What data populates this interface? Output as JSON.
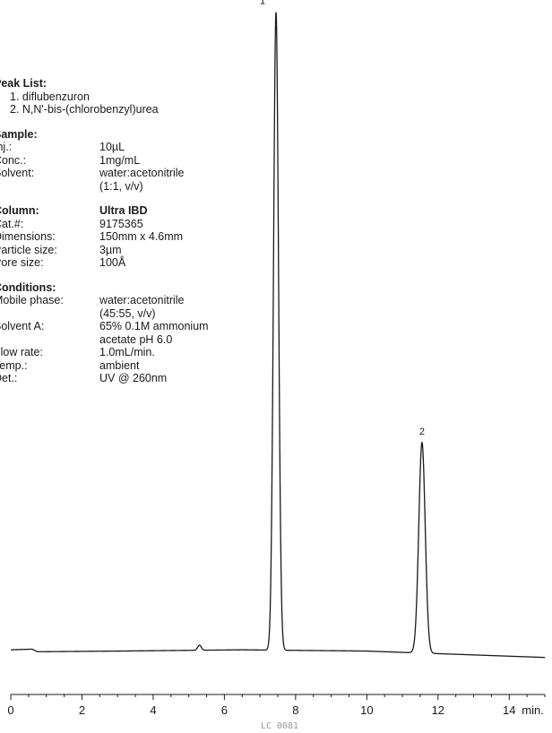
{
  "panel": {
    "peak_list": {
      "title": "Peak List:",
      "items": [
        "1. diflubenzuron",
        "2. N,N'-bis-(chlorobenzyl)urea"
      ]
    },
    "sample": {
      "title": "Sample:",
      "rows": [
        {
          "label": "Inj.:",
          "value": "10µL"
        },
        {
          "label": "Conc.:",
          "value": "1mg/mL"
        },
        {
          "label": "Solvent:",
          "value": "water:acetonitrile"
        },
        {
          "label": "",
          "value": "(1:1, v/v)"
        }
      ]
    },
    "column": {
      "title": "Column:",
      "title_value": "Ultra IBD",
      "rows": [
        {
          "label": "Cat.#:",
          "value": "9175365"
        },
        {
          "label": "Dimensions:",
          "value": "150mm x 4.6mm"
        },
        {
          "label": "Particle size:",
          "value": "3µm"
        },
        {
          "label": "Pore size:",
          "value": "100Å"
        }
      ]
    },
    "conditions": {
      "title": "Conditions:",
      "rows": [
        {
          "label": "Mobile phase:",
          "value": "water:acetonitrile"
        },
        {
          "label": "",
          "value": "(45:55, v/v)"
        },
        {
          "label": "Solvent A:",
          "value": "65% 0.1M ammonium"
        },
        {
          "label": "",
          "value": "acetate pH 6.0"
        },
        {
          "label": "Flow rate:",
          "value": "1.0mL/min."
        },
        {
          "label": "Temp.:",
          "value": "ambient"
        },
        {
          "label": "Det.:",
          "value": "UV @ 260nm"
        }
      ]
    }
  },
  "chart_data": {
    "type": "line",
    "title": "",
    "xlabel": "min.",
    "ylabel": "",
    "xlim": [
      0,
      15
    ],
    "ylim": [
      0,
      100
    ],
    "grid": false,
    "x_ticks": [
      0,
      2,
      4,
      6,
      8,
      10,
      12,
      14
    ],
    "x_minor_step": 0.5,
    "footer_code": "LC 0081",
    "line_color": "#1a1a1a",
    "baseline": 0.3,
    "drift": [
      {
        "x": 0.0,
        "y": 0.4
      },
      {
        "x": 0.6,
        "y": 0.5
      },
      {
        "x": 0.75,
        "y": 0.1
      },
      {
        "x": 3.0,
        "y": 0.2
      },
      {
        "x": 6.5,
        "y": 0.4
      },
      {
        "x": 10.0,
        "y": 0.2
      },
      {
        "x": 15.0,
        "y": -0.8
      }
    ],
    "peaks": [
      {
        "label": "1",
        "retention_time": 7.45,
        "height": 100,
        "width": 0.07
      },
      {
        "label": "2",
        "retention_time": 11.55,
        "height": 33,
        "width": 0.09
      }
    ],
    "minor_peaks": [
      {
        "retention_time": 5.3,
        "height": 0.8,
        "width": 0.05
      }
    ]
  }
}
